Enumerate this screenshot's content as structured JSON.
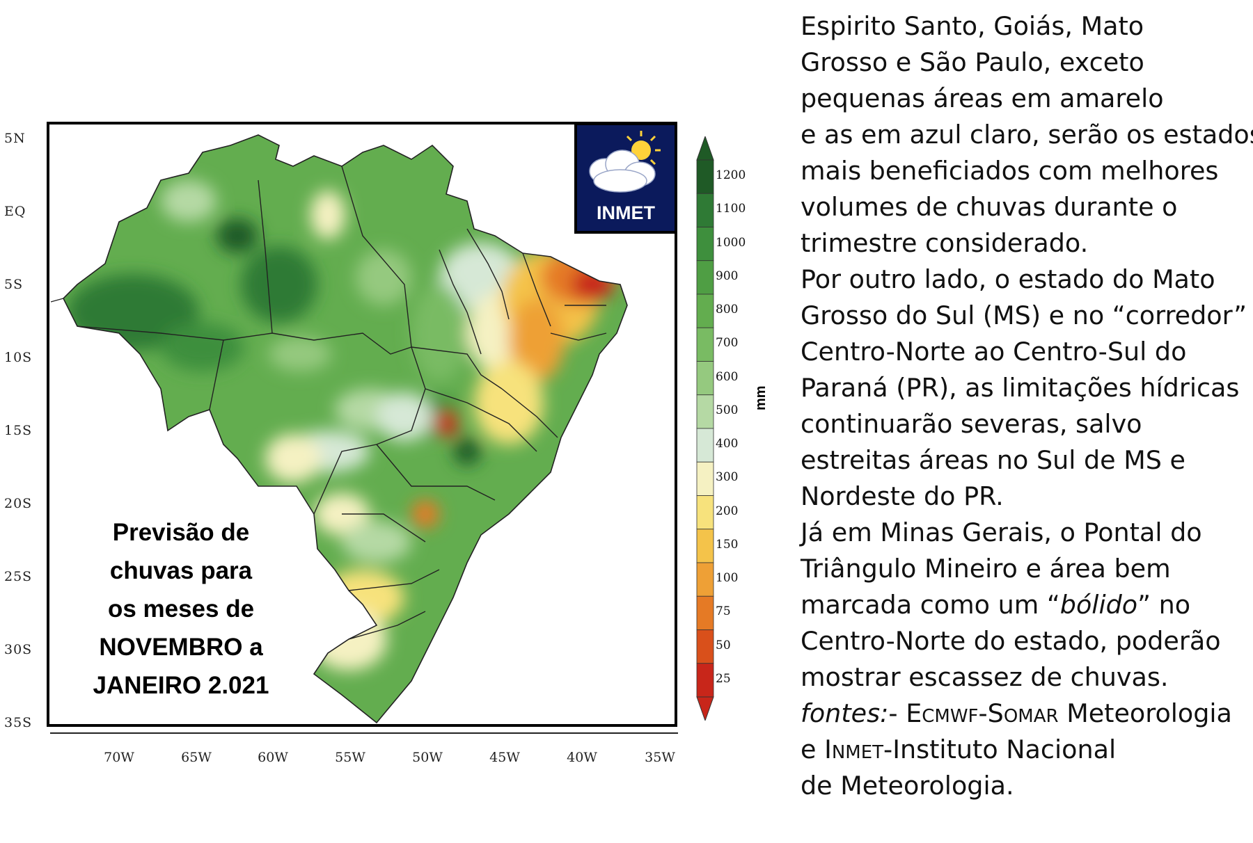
{
  "map": {
    "lat_labels": [
      "5N",
      "EQ",
      "5S",
      "10S",
      "15S",
      "20S",
      "25S",
      "30S",
      "35S"
    ],
    "lon_labels": [
      "70W",
      "65W",
      "60W",
      "55W",
      "50W",
      "45W",
      "40W",
      "35W"
    ],
    "caption_lines": [
      "Previsão de",
      "chuvas para",
      "os meses de",
      "NOVEMBRO a",
      "JANEIRO 2.021"
    ],
    "logo_text": "INMET"
  },
  "colorbar": {
    "ticks": [
      "1200",
      "1100",
      "1000",
      "900",
      "800",
      "700",
      "600",
      "500",
      "400",
      "300",
      "200",
      "150",
      "100",
      "75",
      "50",
      "25"
    ],
    "unit": "mm",
    "colors": [
      "#1f5a26",
      "#2f7a35",
      "#3e8f3d",
      "#4f9e44",
      "#63ad4f",
      "#79bb63",
      "#95c97f",
      "#b5d9a4",
      "#d6e8d6",
      "#f5f1c2",
      "#f7e27c",
      "#f4c34a",
      "#eea036",
      "#e57a25",
      "#d9501b",
      "#c8261a"
    ]
  },
  "text": {
    "lines": [
      "Espirito Santo, Goiás, Mato",
      "Grosso e São Paulo, exceto",
      "pequenas áreas em amarelo",
      "e as em azul claro, serão os estados",
      "mais beneficiados com melhores",
      "volumes de chuvas durante o",
      "trimestre considerado.",
      "Por outro lado, o estado do Mato",
      "Grosso do Sul (MS) e no “corredor”",
      "Centro-Norte ao Centro-Sul do",
      "Paraná (PR), as limitações hídricas",
      "continuarão severas, salvo",
      "estreitas áreas no Sul de MS e",
      "Nordeste do PR.",
      "Já em Minas Gerais, o Pontal do",
      "Triângulo Mineiro e área bem"
    ],
    "bolido_prefix": "marcada como um “",
    "bolido_word": "bólido",
    "bolido_suffix": "”  no",
    "line_after_1": "Centro-Norte do estado, poderão",
    "line_after_2": "mostrar escassez de chuvas.",
    "fontes_label": "fontes:",
    "fontes_rest_1": "- ",
    "fontes_ecmwf": "Ecmwf-Somar",
    "fontes_rest_2": " Meteorologia",
    "fontes_line2_a": "e ",
    "fontes_inmet": "Inmet",
    "fontes_line2_b": "-Instituto Nacional",
    "fontes_line3": "de Meteorologia."
  }
}
